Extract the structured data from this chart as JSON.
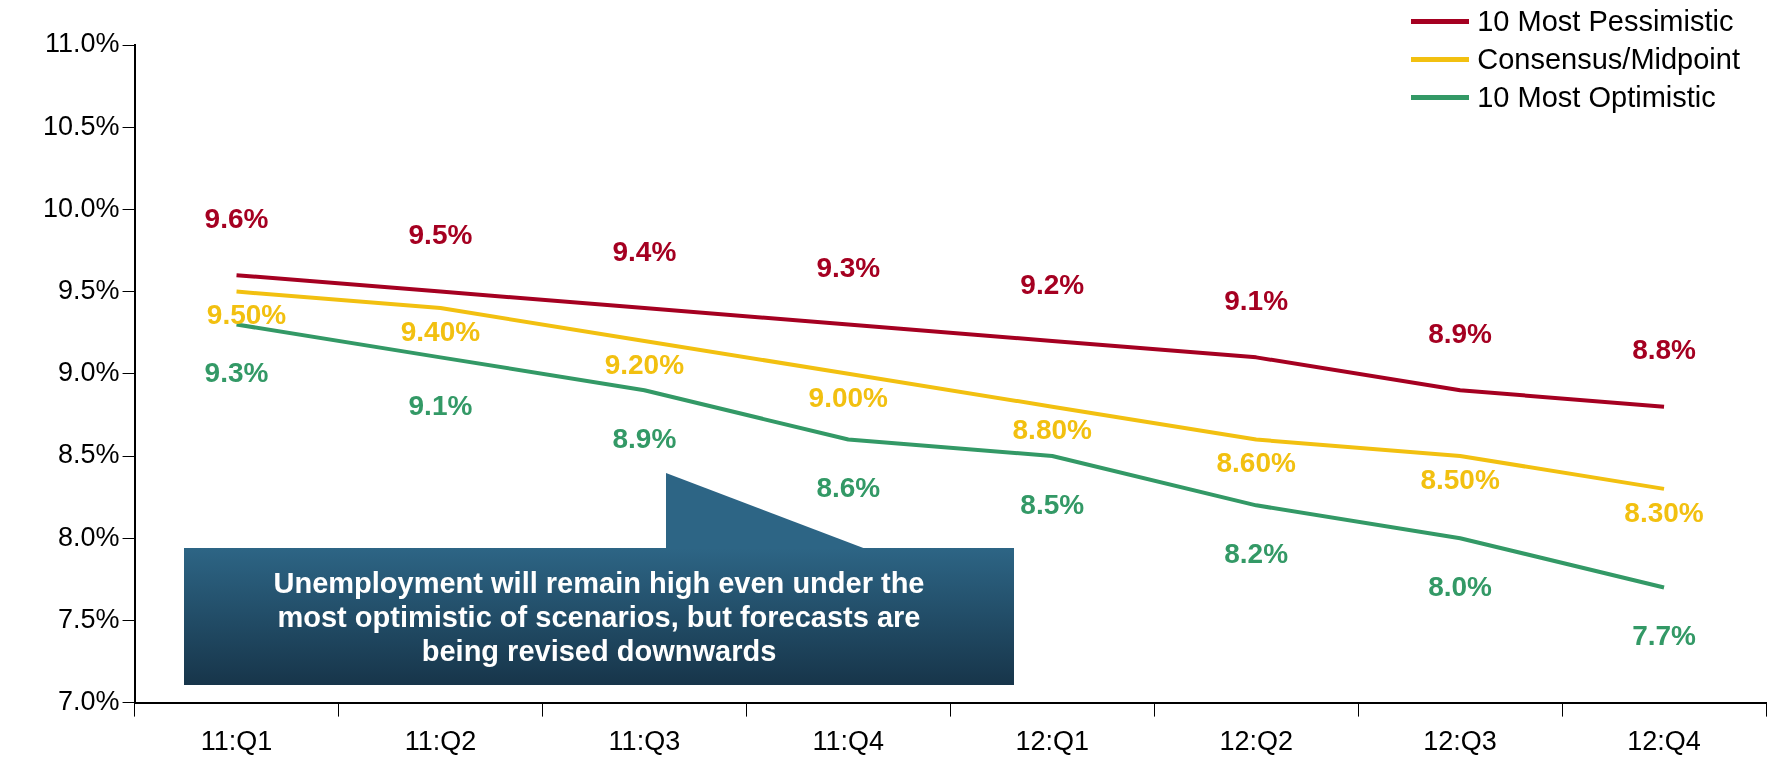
{
  "chart_data": {
    "type": "line",
    "categories": [
      "11:Q1",
      "11:Q2",
      "11:Q3",
      "11:Q4",
      "12:Q1",
      "12:Q2",
      "12:Q3",
      "12:Q4"
    ],
    "series": [
      {
        "name": "10 Most Pessimistic",
        "color": "#a50021",
        "values": [
          9.6,
          9.5,
          9.4,
          9.3,
          9.2,
          9.1,
          8.9,
          8.8
        ],
        "value_labels": [
          "9.6%",
          "9.5%",
          "9.4%",
          "9.3%",
          "9.2%",
          "9.1%",
          "8.9%",
          "8.8%"
        ]
      },
      {
        "name": "Consensus/Midpoint",
        "color": "#f2c010",
        "values": [
          9.5,
          9.4,
          9.2,
          9.0,
          8.8,
          8.6,
          8.5,
          8.3
        ],
        "value_labels": [
          "9.50%",
          "9.40%",
          "9.20%",
          "9.00%",
          "8.80%",
          "8.60%",
          "8.50%",
          "8.30%"
        ]
      },
      {
        "name": "10 Most Optimistic",
        "color": "#339966",
        "values": [
          9.3,
          9.1,
          8.9,
          8.6,
          8.5,
          8.2,
          8.0,
          7.7
        ],
        "value_labels": [
          "9.3%",
          "9.1%",
          "8.9%",
          "8.6%",
          "8.5%",
          "8.2%",
          "8.0%",
          "7.7%"
        ]
      }
    ],
    "ylim": [
      7,
      11
    ],
    "yticks": [
      {
        "value": 7,
        "label": "7.0%"
      },
      {
        "value": 7.5,
        "label": "7.5%"
      },
      {
        "value": 8,
        "label": "8.0%"
      },
      {
        "value": 8.5,
        "label": "8.5%"
      },
      {
        "value": 9,
        "label": "9.0%"
      },
      {
        "value": 9.5,
        "label": "9.5%"
      },
      {
        "value": 10,
        "label": "10.0%"
      },
      {
        "value": 10.5,
        "label": "10.5%"
      },
      {
        "value": 11,
        "label": "11.0%"
      }
    ],
    "grid": false,
    "legend": "top right",
    "marker": "none",
    "line_style": "solid",
    "annotations": [
      "Unemployment  will remain high even under the most optimistic of scenarios, but forecasts are being revised downwards"
    ]
  }
}
